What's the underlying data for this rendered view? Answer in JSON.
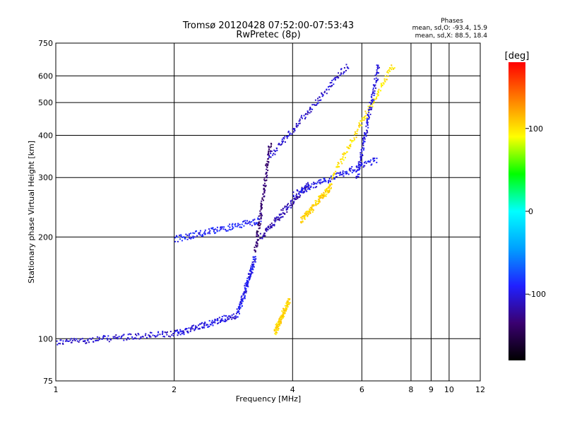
{
  "chart_data": {
    "type": "scatter",
    "title": "Tromsø 20120428 07:52:00-07:53:43",
    "subtitle": "RwPretec (8p)",
    "xlabel": "Frequency [MHz]",
    "ylabel": "Stationary phase Virtual Height [km]",
    "x_scale": "log",
    "y_scale": "log",
    "xlim": [
      1,
      12
    ],
    "ylim": [
      75,
      750
    ],
    "x_ticks": [
      1,
      2,
      4,
      6,
      8,
      9,
      10,
      12
    ],
    "x_tick_labels": [
      "1",
      "2",
      "4",
      "6",
      "8",
      "9",
      "10",
      "12"
    ],
    "y_ticks": [
      75,
      100,
      200,
      300,
      400,
      500,
      600,
      750
    ],
    "y_tick_labels": [
      "75",
      "100",
      "200",
      "300",
      "400",
      "500",
      "600",
      "750"
    ],
    "grid": true,
    "phases": {
      "heading": "Phases",
      "line_o": "mean, sd,O: -93.4, 15.9",
      "line_x": "mean, sd,X:  88.5, 18.4"
    },
    "colorbar": {
      "label": "[deg]",
      "range": [
        -180,
        180
      ],
      "ticks": [
        100,
        0,
        -100
      ],
      "tick_labels": [
        "100",
        "0",
        "-100"
      ],
      "colormap": [
        "#000000",
        "#3a0070",
        "#2020ff",
        "#00a0ff",
        "#00ffff",
        "#00ff00",
        "#ffff00",
        "#ff8000",
        "#ff0000"
      ]
    },
    "series": [
      {
        "freq_range": [
          1.0,
          2.0
        ],
        "height_range": [
          98,
          104
        ],
        "phase": -105
      },
      {
        "freq_range": [
          2.0,
          2.9
        ],
        "height_range": [
          104,
          118
        ],
        "phase": -100
      },
      {
        "freq_range": [
          2.9,
          3.2
        ],
        "height_range": [
          120,
          175
        ],
        "phase": -95
      },
      {
        "freq_range": [
          3.2,
          3.5
        ],
        "height_range": [
          180,
          380
        ],
        "phase": -135
      },
      {
        "freq_range": [
          2.0,
          3.3
        ],
        "height_range": [
          198,
          225
        ],
        "phase": -90
      },
      {
        "freq_range": [
          3.3,
          4.4
        ],
        "height_range": [
          200,
          290
        ],
        "phase": -115
      },
      {
        "freq_range": [
          3.5,
          5.5
        ],
        "height_range": [
          350,
          650
        ],
        "phase": -105
      },
      {
        "freq_range": [
          4.0,
          6.5
        ],
        "height_range": [
          270,
          340
        ],
        "phase": -95
      },
      {
        "freq_range": [
          4.2,
          5.0
        ],
        "height_range": [
          225,
          285
        ],
        "phase": 105
      },
      {
        "freq_range": [
          5.0,
          7.2
        ],
        "height_range": [
          300,
          650
        ],
        "phase": 100
      },
      {
        "freq_range": [
          5.8,
          6.6
        ],
        "height_range": [
          300,
          650
        ],
        "phase": -100
      },
      {
        "freq_range": [
          3.6,
          3.9
        ],
        "height_range": [
          105,
          130
        ],
        "phase": 105
      }
    ]
  }
}
